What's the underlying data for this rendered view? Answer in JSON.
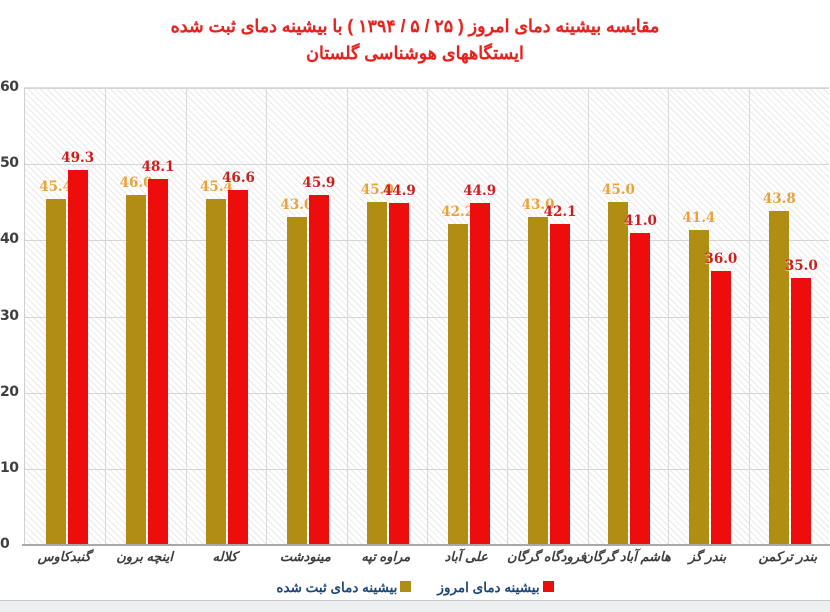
{
  "title": {
    "line1": "مقایسه بیشینه دمای امروز ( ۲۵ / ۵ / ۱۳۹۴ ) با بیشینه دمای ثبت شده",
    "line2": "ایستگاههای هوشناسی گلستان"
  },
  "colors": {
    "title_red": "#e42320",
    "bar_recorded_gold": "#b08d13",
    "bar_today_red": "#ee0d0d",
    "value_label_recorded": "#e9a23b",
    "value_label_today": "#cf1d1d",
    "legend_text_blue": "#1f4779",
    "axis_text": "#3f3f3f",
    "gridline": "#d6d6d6"
  },
  "chart_data": {
    "type": "bar",
    "title": "مقایسه بیشینه دمای امروز ( ۲۵ / ۵ / ۱۳۹۴ ) با بیشینه دمای ثبت شده — ایستگاههای هوشناسی گلستان",
    "categories": [
      "گنبدکاوس",
      "اینچه برون",
      "کلاله",
      "مینودشت",
      "مراوه تپه",
      "علی آباد",
      "فرودگاه گرگان",
      "هاشم آباد گرگان",
      "بندر گز",
      "بندر ترکمن"
    ],
    "series": [
      {
        "name": "بیشینه دمای ثبت شده",
        "color": "#b08d13",
        "label_color": "#e9a23b",
        "values": [
          45.4,
          46.0,
          45.4,
          43.0,
          45.0,
          42.2,
          43.0,
          45.0,
          41.4,
          43.8
        ]
      },
      {
        "name": "بیشینه دمای امروز",
        "color": "#ee0d0d",
        "label_color": "#cf1d1d",
        "values": [
          49.3,
          48.1,
          46.6,
          45.9,
          44.9,
          44.9,
          42.1,
          41.0,
          36.0,
          35.0
        ]
      }
    ],
    "xlabel": "",
    "ylabel": "",
    "ylim": [
      0,
      60
    ],
    "yticks": [
      0,
      10,
      20,
      30,
      40,
      50,
      60
    ],
    "grid": true,
    "hatch_background": true,
    "legend_position": "bottom",
    "value_labels_decimals": 1
  },
  "legend": {
    "items": [
      {
        "label": "بیشینه دمای ثبت شده",
        "color": "#b08d13"
      },
      {
        "label": "بیشینه دمای امروز",
        "color": "#ee0d0d"
      }
    ]
  }
}
